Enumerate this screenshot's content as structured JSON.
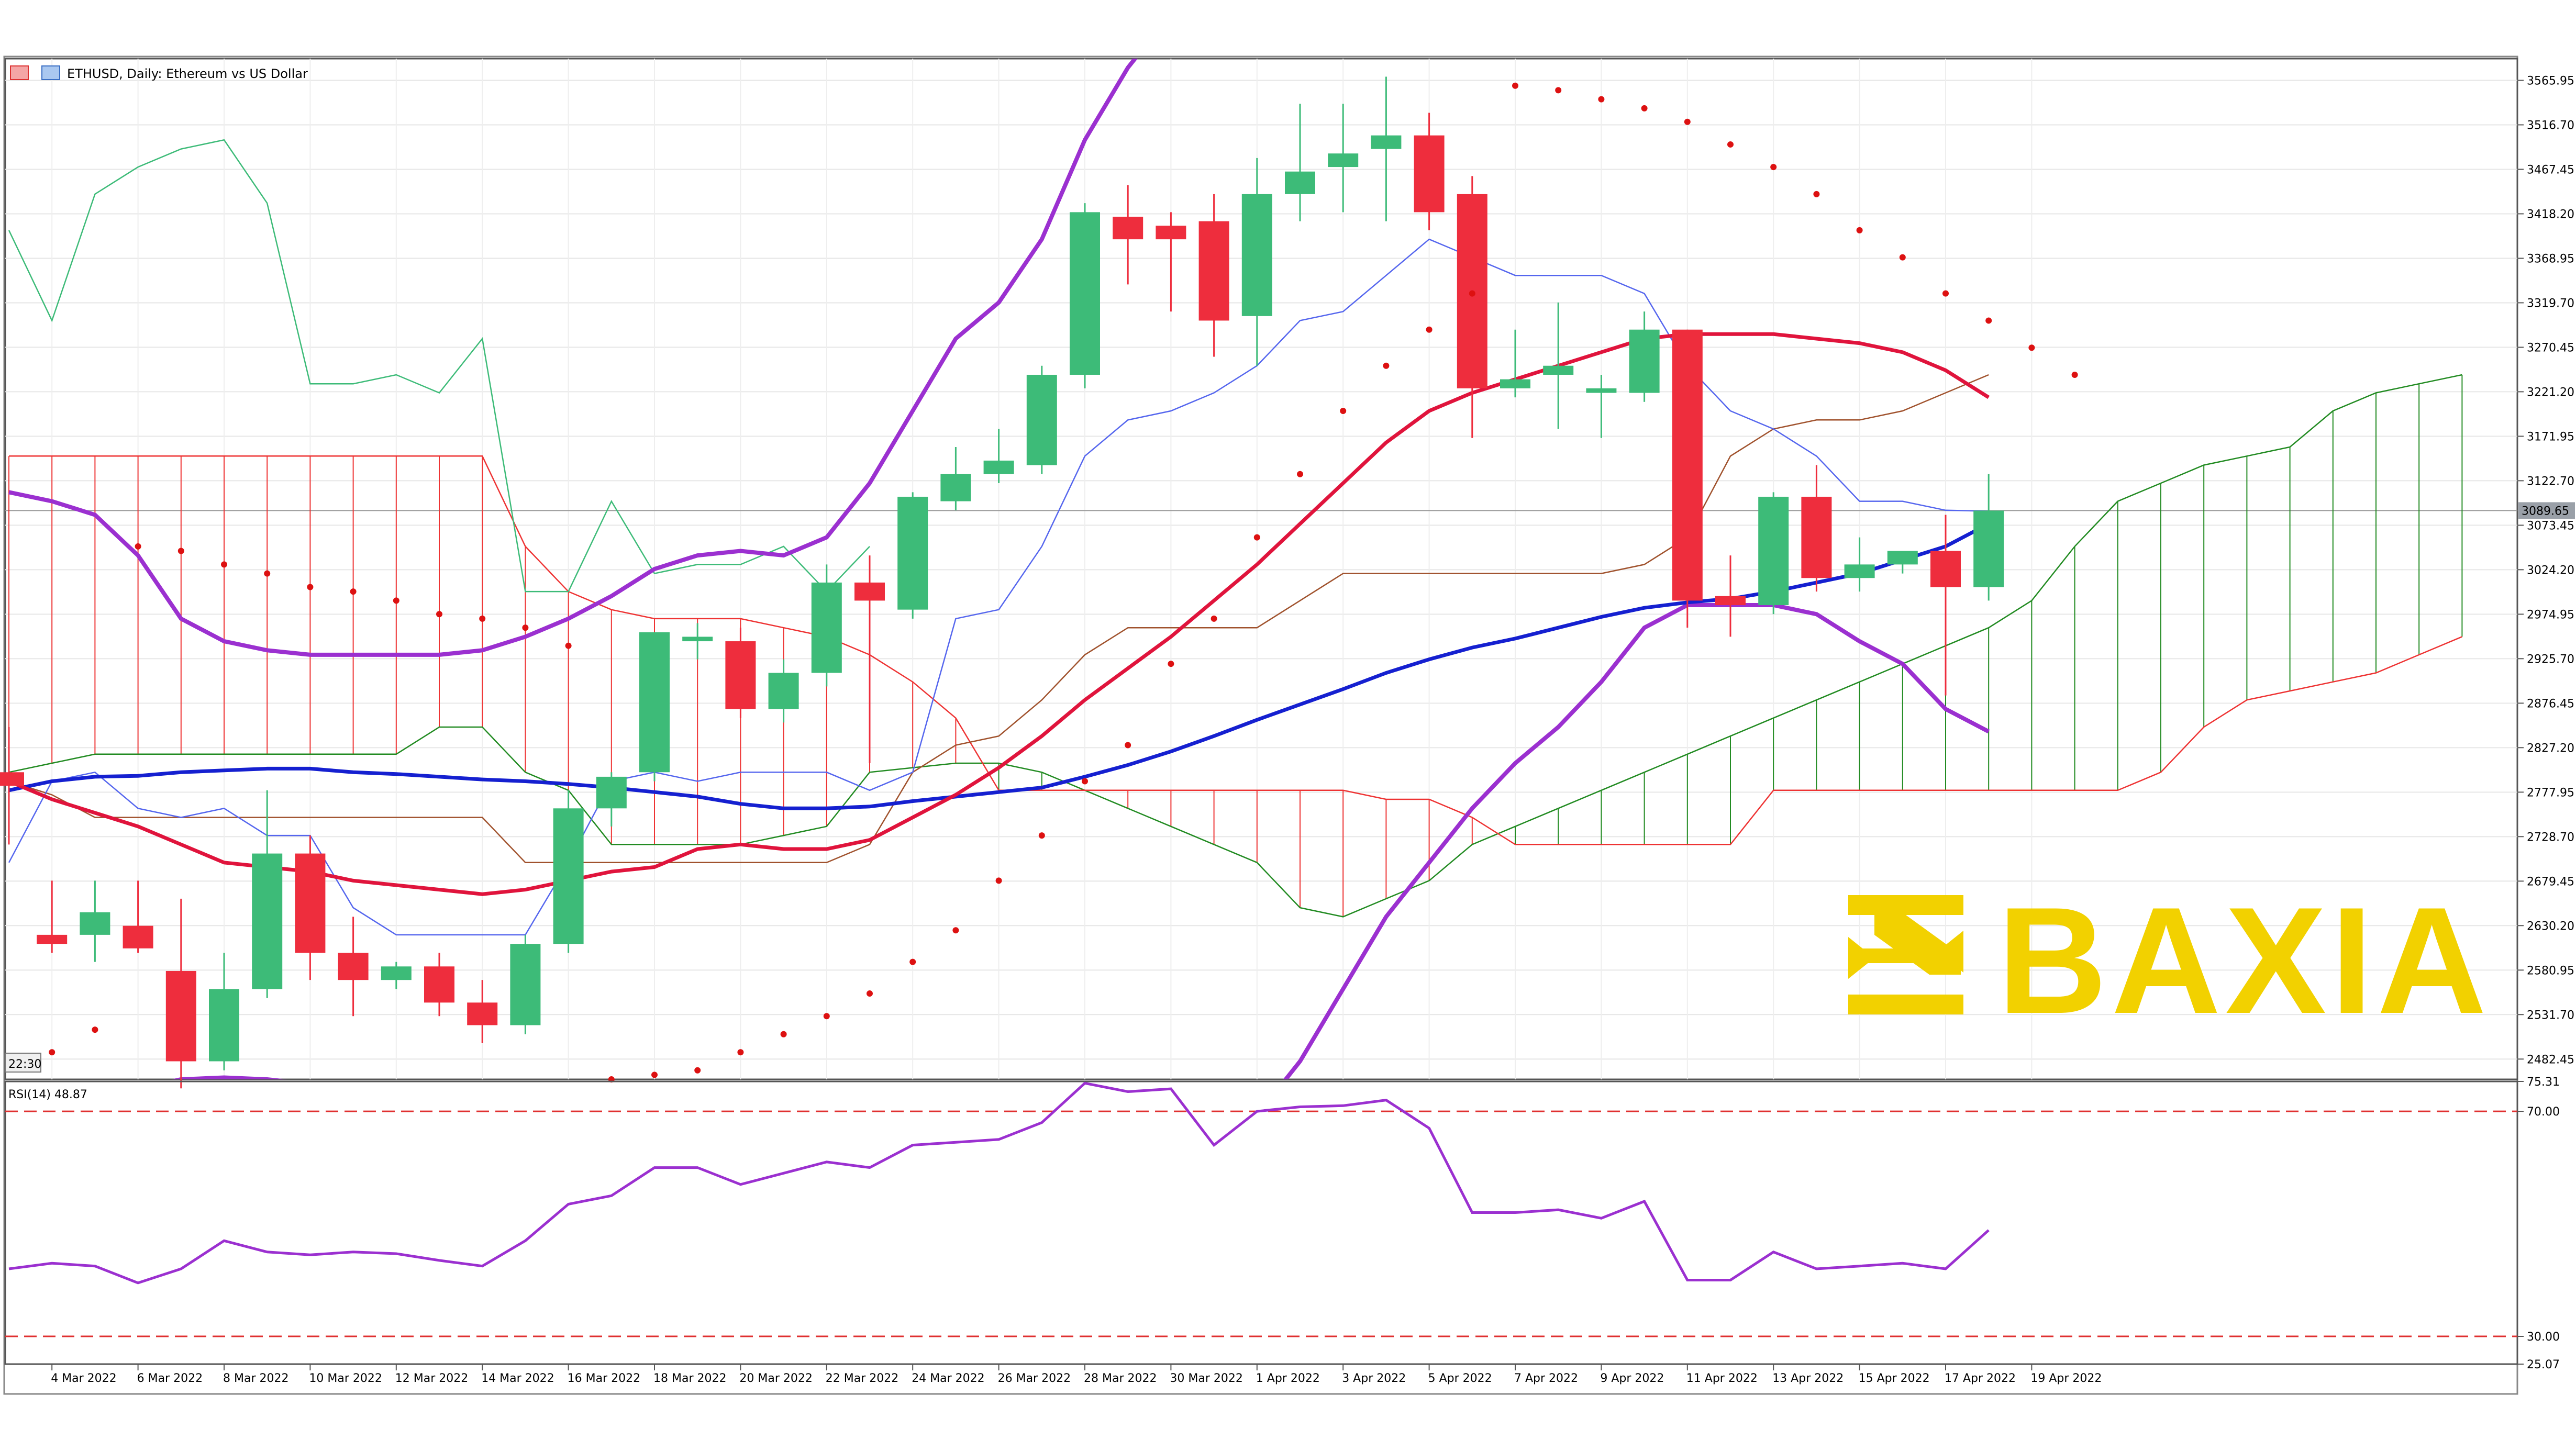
{
  "header": {
    "symbol": "ETHUSD, Daily:  Ethereum vs US Dollar",
    "time_label": "22:30"
  },
  "price_axis": {
    "labels": [
      "3565.95",
      "3516.70",
      "3467.45",
      "3418.20",
      "3368.95",
      "3319.70",
      "3270.45",
      "3221.20",
      "3171.95",
      "3122.70",
      "3073.45",
      "3024.20",
      "2974.95",
      "2925.70",
      "2876.45",
      "2827.20",
      "2777.95",
      "2728.70",
      "2679.45",
      "2630.20",
      "2580.95",
      "2531.70",
      "2482.45"
    ],
    "current_price_label": "3089.65",
    "current_price": 3089.65
  },
  "rsi": {
    "label": "RSI(14) 48.87",
    "axis_labels": [
      "75.31",
      "70.00",
      "30.00",
      "25.07"
    ],
    "levels": [
      70,
      30
    ]
  },
  "watermark": {
    "text": "BAXIA",
    "color": "#f2d100"
  },
  "colors": {
    "bull": "#3dbb78",
    "bear": "#ee2d3d",
    "ma_red": "#e0143c",
    "ma_blue": "#1520d0",
    "bollinger": "#9b30d0",
    "kijun": "#a0522d",
    "tenkan": "#5566ee",
    "chikou": "#3dbb78",
    "cloud_red": "#ee3333",
    "cloud_green": "#228b22",
    "sar": "#dd1111",
    "rsi": "#9b30d0"
  },
  "chart_data": [
    {
      "type": "candlestick",
      "title": "ETHUSD, Daily:  Ethereum vs US Dollar",
      "x": [
        "3 Mar 2022",
        "4 Mar 2022",
        "5 Mar 2022",
        "6 Mar 2022",
        "7 Mar 2022",
        "8 Mar 2022",
        "9 Mar 2022",
        "10 Mar 2022",
        "11 Mar 2022",
        "12 Mar 2022",
        "13 Mar 2022",
        "14 Mar 2022",
        "15 Mar 2022",
        "16 Mar 2022",
        "17 Mar 2022",
        "18 Mar 2022",
        "19 Mar 2022",
        "20 Mar 2022",
        "21 Mar 2022",
        "22 Mar 2022",
        "23 Mar 2022",
        "24 Mar 2022",
        "25 Mar 2022",
        "26 Mar 2022",
        "27 Mar 2022",
        "28 Mar 2022",
        "29 Mar 2022",
        "30 Mar 2022",
        "31 Mar 2022",
        "1 Apr 2022",
        "2 Apr 2022",
        "3 Apr 2022",
        "4 Apr 2022",
        "5 Apr 2022",
        "6 Apr 2022",
        "7 Apr 2022",
        "8 Apr 2022",
        "9 Apr 2022",
        "10 Apr 2022",
        "11 Apr 2022",
        "12 Apr 2022",
        "13 Apr 2022",
        "14 Apr 2022",
        "15 Apr 2022",
        "16 Apr 2022",
        "17 Apr 2022",
        "18 Apr 2022"
      ],
      "x_tick_labels": [
        "4 Mar 2022",
        "6 Mar 2022",
        "8 Mar 2022",
        "10 Mar 2022",
        "12 Mar 2022",
        "14 Mar 2022",
        "16 Mar 2022",
        "18 Mar 2022",
        "20 Mar 2022",
        "22 Mar 2022",
        "24 Mar 2022",
        "26 Mar 2022",
        "28 Mar 2022",
        "30 Mar 2022",
        "1 Apr 2022",
        "3 Apr 2022",
        "5 Apr 2022",
        "7 Apr 2022",
        "9 Apr 2022",
        "11 Apr 2022",
        "13 Apr 2022",
        "15 Apr 2022",
        "17 Apr 2022",
        "19 Apr 2022"
      ],
      "ylim": [
        2460,
        3590
      ],
      "ohlc": [
        [
          2800,
          2850,
          2720,
          2785
        ],
        [
          2620,
          2680,
          2600,
          2610
        ],
        [
          2620,
          2680,
          2590,
          2645
        ],
        [
          2630,
          2680,
          2600,
          2605
        ],
        [
          2580,
          2660,
          2450,
          2480
        ],
        [
          2480,
          2600,
          2470,
          2560
        ],
        [
          2560,
          2780,
          2550,
          2710
        ],
        [
          2710,
          2730,
          2570,
          2600
        ],
        [
          2600,
          2640,
          2530,
          2570
        ],
        [
          2570,
          2590,
          2560,
          2585
        ],
        [
          2585,
          2600,
          2530,
          2545
        ],
        [
          2545,
          2570,
          2500,
          2520
        ],
        [
          2520,
          2620,
          2510,
          2610
        ],
        [
          2610,
          2780,
          2600,
          2760
        ],
        [
          2760,
          2800,
          2740,
          2795
        ],
        [
          2800,
          2950,
          2790,
          2955
        ],
        [
          2945,
          2965,
          2925,
          2950
        ],
        [
          2945,
          2960,
          2860,
          2870
        ],
        [
          2870,
          2925,
          2855,
          2910
        ],
        [
          2910,
          3030,
          2895,
          3010
        ],
        [
          3010,
          3040,
          2810,
          2990
        ],
        [
          2980,
          3110,
          2970,
          3105
        ],
        [
          3100,
          3160,
          3090,
          3130
        ],
        [
          3130,
          3180,
          3120,
          3145
        ],
        [
          3140,
          3250,
          3130,
          3240
        ],
        [
          3240,
          3430,
          3225,
          3420
        ],
        [
          3415,
          3450,
          3340,
          3390
        ],
        [
          3405,
          3420,
          3310,
          3390
        ],
        [
          3410,
          3440,
          3260,
          3300
        ],
        [
          3305,
          3480,
          3250,
          3440
        ],
        [
          3440,
          3540,
          3410,
          3465
        ],
        [
          3470,
          3540,
          3420,
          3485
        ],
        [
          3490,
          3570,
          3410,
          3505
        ],
        [
          3505,
          3530,
          3400,
          3420
        ],
        [
          3440,
          3460,
          3170,
          3225
        ],
        [
          3225,
          3290,
          3215,
          3235
        ],
        [
          3240,
          3320,
          3180,
          3250
        ],
        [
          3220,
          3240,
          3170,
          3225
        ],
        [
          3220,
          3310,
          3210,
          3290
        ],
        [
          3290,
          3290,
          2960,
          2990
        ],
        [
          2995,
          3040,
          2950,
          2985
        ],
        [
          2985,
          3110,
          2975,
          3105
        ],
        [
          3105,
          3140,
          3000,
          3015
        ],
        [
          3015,
          3060,
          3000,
          3030
        ],
        [
          3030,
          3045,
          3020,
          3045
        ],
        [
          3045,
          3085,
          2885,
          3005
        ],
        [
          3005,
          3130,
          2990,
          3089.65
        ]
      ],
      "ma_red": [
        2790,
        2770,
        2755,
        2740,
        2720,
        2700,
        2695,
        2690,
        2680,
        2675,
        2670,
        2665,
        2670,
        2680,
        2690,
        2695,
        2715,
        2720,
        2715,
        2715,
        2725,
        2750,
        2775,
        2805,
        2840,
        2880,
        2915,
        2950,
        2990,
        3030,
        3075,
        3120,
        3165,
        3200,
        3220,
        3235,
        3250,
        3265,
        3280,
        3285,
        3285,
        3285,
        3280,
        3275,
        3265,
        3245,
        3215
      ],
      "ma_blue": [
        2780,
        2790,
        2795,
        2796,
        2800,
        2802,
        2804,
        2804,
        2800,
        2798,
        2795,
        2792,
        2790,
        2787,
        2783,
        2778,
        2773,
        2765,
        2760,
        2760,
        2762,
        2768,
        2773,
        2778,
        2783,
        2795,
        2808,
        2823,
        2840,
        2858,
        2875,
        2892,
        2910,
        2925,
        2938,
        2948,
        2960,
        2972,
        2982,
        2988,
        2992,
        3000,
        3010,
        3020,
        3035,
        3050,
        3075
      ],
      "bollinger_upper": [
        3110,
        3100,
        3085,
        3040,
        2970,
        2945,
        2935,
        2930,
        2930,
        2930,
        2930,
        2935,
        2950,
        2970,
        2995,
        3025,
        3040,
        3045,
        3040,
        3060,
        3120,
        3200,
        3280,
        3320,
        3390,
        3500,
        3580,
        3640,
        3660,
        3680,
        3700,
        3700,
        3700,
        3700,
        3700,
        3700,
        3700,
        3700,
        3700,
        3700,
        3700,
        3700,
        3700,
        3700,
        3700,
        3690,
        3660
      ],
      "bollinger_lower": [
        2440,
        2430,
        2440,
        2450,
        2460,
        2462,
        2460,
        2455,
        2450,
        2440,
        2420,
        2400,
        2390,
        2380,
        2380,
        2390,
        2400,
        2400,
        2400,
        2405,
        2405,
        2400,
        2400,
        2405,
        2405,
        2400,
        2395,
        2390,
        2380,
        2420,
        2480,
        2560,
        2640,
        2700,
        2760,
        2810,
        2850,
        2900,
        2960,
        2985,
        2985,
        2985,
        2975,
        2945,
        2920,
        2870,
        2845
      ],
      "kijun": [
        2790,
        2775,
        2750,
        2750,
        2750,
        2750,
        2750,
        2750,
        2750,
        2750,
        2750,
        2750,
        2700,
        2700,
        2700,
        2700,
        2700,
        2700,
        2700,
        2700,
        2720,
        2800,
        2830,
        2840,
        2880,
        2930,
        2960,
        2960,
        2960,
        2960,
        2990,
        3020,
        3020,
        3020,
        3020,
        3020,
        3020,
        3020,
        3030,
        3060,
        3150,
        3180,
        3190,
        3190,
        3200,
        3220,
        3240
      ],
      "tenkan": [
        2700,
        2790,
        2800,
        2760,
        2750,
        2760,
        2730,
        2730,
        2650,
        2620,
        2620,
        2620,
        2620,
        2700,
        2790,
        2800,
        2790,
        2800,
        2800,
        2800,
        2780,
        2800,
        2970,
        2980,
        3050,
        3150,
        3190,
        3200,
        3220,
        3250,
        3300,
        3310,
        3350,
        3390,
        3370,
        3350,
        3350,
        3350,
        3330,
        3250,
        3200,
        3180,
        3150,
        3100,
        3100,
        3090,
        3089
      ],
      "chikou": [
        3400,
        3300,
        3440,
        3470,
        3490,
        3500,
        3430,
        3230,
        3230,
        3240,
        3220,
        3280,
        3000,
        3000,
        3100,
        3020,
        3030,
        3030,
        3050,
        3000,
        3050
      ],
      "cloud_span_a": [
        2800,
        2810,
        2820,
        2820,
        2820,
        2820,
        2820,
        2820,
        2820,
        2820,
        2850,
        2850,
        2800,
        2780,
        2720,
        2720,
        2720,
        2720,
        2730,
        2740,
        2800,
        2805,
        2810,
        2810,
        2800,
        2780,
        2760,
        2740,
        2720,
        2700,
        2650,
        2640,
        2660,
        2680,
        2720,
        2740,
        2760,
        2780,
        2800,
        2820,
        2840,
        2860,
        2880,
        2900,
        2920,
        2940,
        2960,
        2990,
        3050,
        3100,
        3120,
        3140,
        3150,
        3160,
        3200,
        3220,
        3230,
        3240
      ],
      "cloud_span_b": [
        3150,
        3150,
        3150,
        3150,
        3150,
        3150,
        3150,
        3150,
        3150,
        3150,
        3150,
        3150,
        3050,
        3000,
        2980,
        2970,
        2970,
        2970,
        2960,
        2950,
        2930,
        2900,
        2860,
        2780,
        2780,
        2780,
        2780,
        2780,
        2780,
        2780,
        2780,
        2780,
        2770,
        2770,
        2750,
        2720,
        2720,
        2720,
        2720,
        2720,
        2720,
        2780,
        2780,
        2780,
        2780,
        2780,
        2780,
        2780,
        2780,
        2780,
        2800,
        2850,
        2880,
        2890,
        2900,
        2910,
        2930,
        2950
      ],
      "sar": [
        [
          1,
          2490
        ],
        [
          2,
          2515
        ],
        [
          3,
          3050
        ],
        [
          4,
          3045
        ],
        [
          5,
          3030
        ],
        [
          6,
          3020
        ],
        [
          7,
          3005
        ],
        [
          8,
          3000
        ],
        [
          9,
          2990
        ],
        [
          10,
          2975
        ],
        [
          11,
          2970
        ],
        [
          12,
          2960
        ],
        [
          13,
          2940
        ],
        [
          14,
          2460
        ],
        [
          15,
          2465
        ],
        [
          16,
          2470
        ],
        [
          17,
          2490
        ],
        [
          18,
          2510
        ],
        [
          19,
          2530
        ],
        [
          20,
          2555
        ],
        [
          21,
          2590
        ],
        [
          22,
          2625
        ],
        [
          23,
          2680
        ],
        [
          24,
          2730
        ],
        [
          25,
          2790
        ],
        [
          26,
          2830
        ],
        [
          27,
          2920
        ],
        [
          28,
          2970
        ],
        [
          29,
          3060
        ],
        [
          30,
          3130
        ],
        [
          31,
          3200
        ],
        [
          32,
          3250
        ],
        [
          33,
          3290
        ],
        [
          34,
          3330
        ],
        [
          35,
          3560
        ],
        [
          36,
          3555
        ],
        [
          37,
          3545
        ],
        [
          38,
          3535
        ],
        [
          39,
          3520
        ],
        [
          40,
          3495
        ],
        [
          41,
          3470
        ],
        [
          42,
          3440
        ],
        [
          43,
          3400
        ],
        [
          44,
          3370
        ],
        [
          45,
          3330
        ],
        [
          46,
          3300
        ],
        [
          47,
          3270
        ],
        [
          48,
          3240
        ]
      ]
    },
    {
      "type": "line",
      "title": "RSI(14) 48.87",
      "ylim": [
        25.07,
        75.31
      ],
      "values": [
        42,
        43,
        42.5,
        39.5,
        42,
        47,
        45,
        44.5,
        45,
        44.7,
        43.5,
        42.5,
        47,
        53.5,
        55,
        60,
        60,
        57,
        59,
        61,
        60,
        64,
        64.5,
        65,
        68,
        75,
        73.5,
        74,
        64,
        70,
        70.8,
        71,
        72,
        67,
        52,
        52,
        52.5,
        51,
        54,
        40,
        40,
        45,
        42,
        42.5,
        43,
        42,
        48.87
      ]
    }
  ]
}
